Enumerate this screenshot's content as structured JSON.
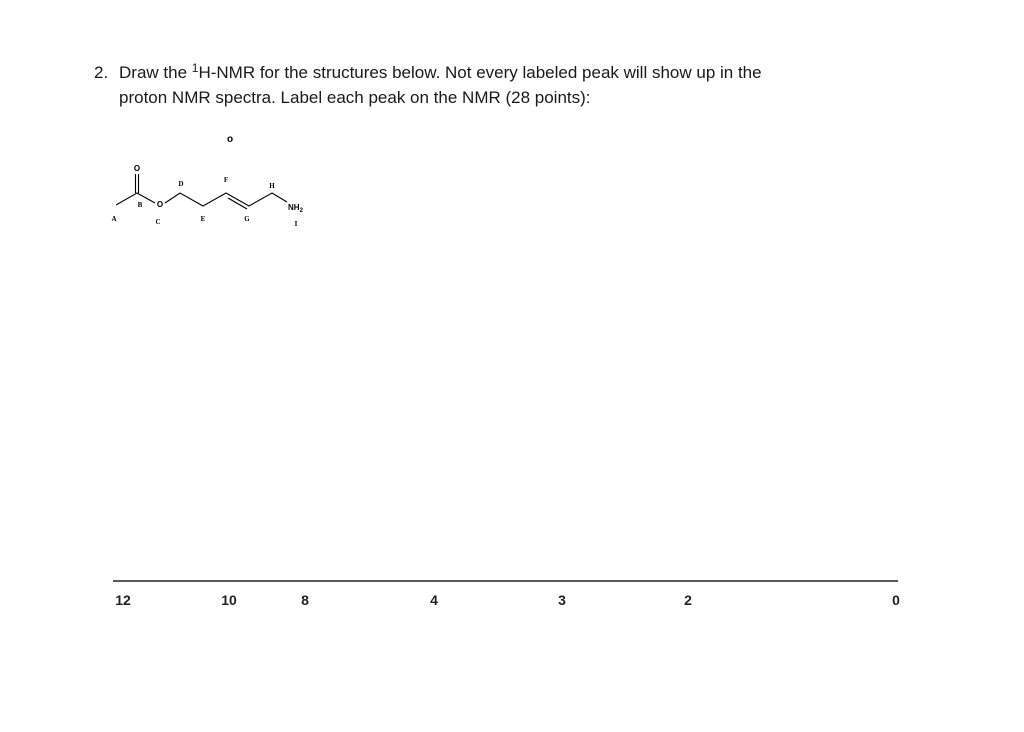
{
  "question": {
    "number": "2.",
    "text_before": "Draw the ",
    "superscript": "1",
    "text_line1": "H-NMR for the structures below. Not every labeled peak will show up in the",
    "text_line2": "proton NMR spectra. Label each peak on the NMR (28 points):"
  },
  "stray_mark": "o",
  "structure": {
    "carbonyl_oxygen": "O",
    "ester_oxygen": "O",
    "amine": "NH",
    "amine_subscript": "2",
    "labels": [
      "A",
      "B",
      "C",
      "D",
      "E",
      "F",
      "G",
      "H",
      "I"
    ]
  },
  "axis": {
    "labels": [
      "12",
      "10",
      "8",
      "4",
      "3",
      "2",
      "0"
    ]
  }
}
